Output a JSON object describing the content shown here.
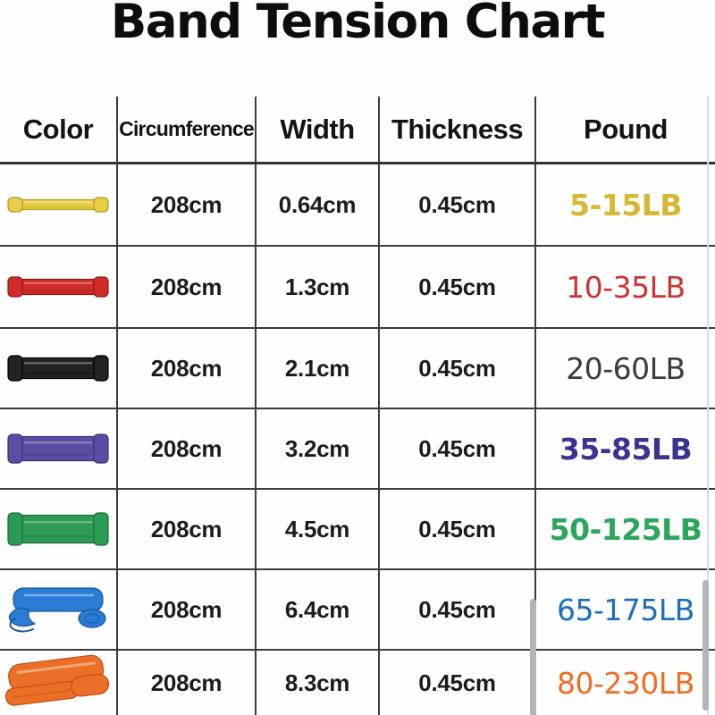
{
  "title": "Band Tension Chart",
  "table": {
    "grid_line_color": "#3c3c3c",
    "headers": [
      {
        "label": "Color"
      },
      {
        "label": "Circumference"
      },
      {
        "label": "Width"
      },
      {
        "label": "Thickness"
      },
      {
        "label": "Pound"
      }
    ],
    "rows": [
      {
        "band": "yellow-band",
        "band_color": "#e6cf45",
        "band_dark": "#b39a1f",
        "band_shape": "thin",
        "band_height": 11,
        "circumference": "208cm",
        "width": "0.64cm",
        "thickness": "0.45cm",
        "pound": "5-15LB",
        "pound_color": "#d6b835",
        "pound_bold": true
      },
      {
        "band": "red-band",
        "band_color": "#d02c27",
        "band_dark": "#8f1b18",
        "band_shape": "flat",
        "band_height": 17,
        "circumference": "208cm",
        "width": "1.3cm",
        "thickness": "0.45cm",
        "pound": "10-35LB",
        "pound_color": "#cd3431",
        "pound_bold": false
      },
      {
        "band": "black-band",
        "band_color": "#232323",
        "band_dark": "#000000",
        "band_shape": "flat",
        "band_height": 23,
        "circumference": "208cm",
        "width": "2.1cm",
        "thickness": "0.45cm",
        "pound": "20-60LB",
        "pound_color": "#3b3b3b",
        "pound_bold": false
      },
      {
        "band": "purple-band",
        "band_color": "#5a4da3",
        "band_dark": "#3b3478",
        "band_shape": "flat",
        "band_height": 27,
        "circumference": "208cm",
        "width": "3.2cm",
        "thickness": "0.45cm",
        "pound": "35-85LB",
        "pound_color": "#3a3490",
        "pound_bold": true
      },
      {
        "band": "green-band",
        "band_color": "#2c9b53",
        "band_dark": "#1d6b39",
        "band_shape": "flat",
        "band_height": 31,
        "circumference": "208cm",
        "width": "4.5cm",
        "thickness": "0.45cm",
        "pound": "50-125LB",
        "pound_color": "#2ca65c",
        "pound_bold": true
      },
      {
        "band": "blue-band",
        "band_color": "#2a7cd5",
        "band_dark": "#1a579c",
        "band_shape": "folded",
        "band_height": 26,
        "circumference": "208cm",
        "width": "6.4cm",
        "thickness": "0.45cm",
        "pound": "65-175LB",
        "pound_color": "#1e6fba",
        "pound_bold": false
      },
      {
        "band": "orange-band",
        "band_color": "#eb6f27",
        "band_dark": "#bf4f10",
        "band_shape": "folded-large",
        "band_height": 30,
        "circumference": "208cm",
        "width": "8.3cm",
        "thickness": "0.45cm",
        "pound": "80-230LB",
        "pound_color": "#f26c21",
        "pound_bold": false
      }
    ]
  },
  "scrollbars": {
    "thumb_color": "#b4b4b4"
  },
  "chart_data": {
    "type": "table",
    "title": "Band Tension Chart",
    "columns": [
      "Color",
      "Circumference",
      "Width",
      "Thickness",
      "Pound"
    ],
    "rows": [
      [
        "Yellow",
        "208cm",
        "0.64cm",
        "0.45cm",
        "5-15LB"
      ],
      [
        "Red",
        "208cm",
        "1.3cm",
        "0.45cm",
        "10-35LB"
      ],
      [
        "Black",
        "208cm",
        "2.1cm",
        "0.45cm",
        "20-60LB"
      ],
      [
        "Purple",
        "208cm",
        "3.2cm",
        "0.45cm",
        "35-85LB"
      ],
      [
        "Green",
        "208cm",
        "4.5cm",
        "0.45cm",
        "50-125LB"
      ],
      [
        "Blue",
        "208cm",
        "6.4cm",
        "0.45cm",
        "65-175LB"
      ],
      [
        "Orange",
        "208cm",
        "8.3cm",
        "0.45cm",
        "80-230LB"
      ]
    ]
  }
}
